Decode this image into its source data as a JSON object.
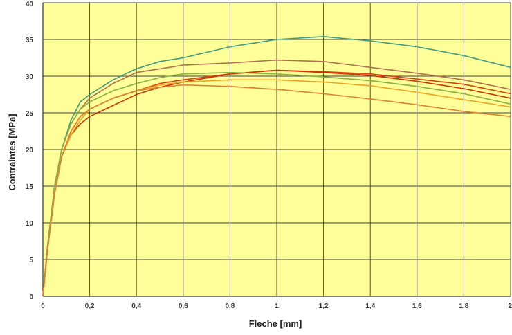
{
  "chart_data": {
    "type": "line",
    "title": "",
    "xlabel": "Fleche [mm]",
    "ylabel": "Contraintes  [MPa]",
    "xlim": [
      0,
      2
    ],
    "ylim": [
      0,
      40
    ],
    "grid": true,
    "plot_background": "#ffff99",
    "grid_color": "#404040",
    "x_ticks": [
      0,
      0.2,
      0.4,
      0.6,
      0.8,
      1,
      1.2,
      1.4,
      1.6,
      1.8,
      2
    ],
    "x_tick_labels": [
      "0",
      "0,2",
      "0,4",
      "0,6",
      "0,8",
      "1",
      "1,2",
      "1,4",
      "1,6",
      "1,8",
      "2"
    ],
    "y_ticks": [
      0,
      5,
      10,
      15,
      20,
      25,
      30,
      35,
      40
    ],
    "y_tick_labels": [
      "0",
      "5",
      "10",
      "15",
      "20",
      "25",
      "30",
      "35",
      "40"
    ],
    "series": [
      {
        "color": "#3e9a80",
        "x": [
          0,
          0.02,
          0.05,
          0.08,
          0.12,
          0.16,
          0.2,
          0.3,
          0.4,
          0.5,
          0.6,
          0.8,
          1.0,
          1.2,
          1.4,
          1.6,
          1.8,
          2.0
        ],
        "y": [
          0,
          7,
          15,
          20,
          24,
          26.5,
          27.5,
          29.5,
          31,
          32,
          32.5,
          34,
          35,
          35.4,
          34.8,
          34,
          32.8,
          31.2
        ]
      },
      {
        "color": "#b07050",
        "x": [
          0,
          0.02,
          0.05,
          0.08,
          0.12,
          0.16,
          0.2,
          0.3,
          0.4,
          0.5,
          0.6,
          0.8,
          1.0,
          1.2,
          1.4,
          1.6,
          1.8,
          2.0
        ],
        "y": [
          0,
          7,
          15,
          20,
          23.5,
          25.5,
          27,
          29,
          30.5,
          31,
          31.5,
          31.8,
          32.2,
          32,
          31.2,
          30.4,
          29.5,
          28.2
        ]
      },
      {
        "color": "#d84010",
        "x": [
          0,
          0.02,
          0.05,
          0.08,
          0.12,
          0.16,
          0.2,
          0.3,
          0.4,
          0.5,
          0.6,
          0.8,
          1.0,
          1.2,
          1.4,
          1.6,
          1.8,
          2.0
        ],
        "y": [
          0,
          6.5,
          14,
          19,
          22.5,
          24.5,
          25.5,
          27,
          28,
          29,
          29.5,
          30.3,
          30.8,
          30.6,
          30.3,
          29.6,
          28.9,
          27.6
        ]
      },
      {
        "color": "#cc3300",
        "x": [
          0,
          0.02,
          0.05,
          0.08,
          0.12,
          0.16,
          0.2,
          0.3,
          0.4,
          0.5,
          0.6,
          0.8,
          1.0,
          1.2,
          1.4,
          1.6,
          1.8,
          2.0
        ],
        "y": [
          0,
          6.5,
          14,
          19,
          22,
          23.5,
          24.5,
          26,
          27.5,
          28.5,
          29.2,
          30.3,
          30.8,
          30.5,
          30.1,
          29.3,
          28.3,
          27
        ]
      },
      {
        "color": "#88b040",
        "x": [
          0,
          0.02,
          0.05,
          0.08,
          0.12,
          0.16,
          0.2,
          0.3,
          0.4,
          0.5,
          0.6,
          0.8,
          1.0,
          1.2,
          1.4,
          1.6,
          1.8,
          2.0
        ],
        "y": [
          0,
          7,
          15,
          20,
          23.5,
          25.5,
          26.5,
          28,
          29,
          29.8,
          30.3,
          30.5,
          30.3,
          29.9,
          29.4,
          28.6,
          27.6,
          26.2
        ]
      },
      {
        "color": "#f0a020",
        "x": [
          0,
          0.02,
          0.05,
          0.08,
          0.12,
          0.16,
          0.2,
          0.3,
          0.4,
          0.5,
          0.6,
          0.8,
          1.0,
          1.2,
          1.4,
          1.6,
          1.8,
          2.0
        ],
        "y": [
          0,
          6.5,
          14,
          19,
          22,
          24,
          25.5,
          27,
          28,
          28.8,
          29.2,
          29.5,
          29.5,
          29.2,
          28.7,
          27.8,
          26.8,
          25.8
        ]
      },
      {
        "color": "#e08030",
        "x": [
          0,
          0.02,
          0.05,
          0.08,
          0.12,
          0.16,
          0.2,
          0.3,
          0.4,
          0.5,
          0.6,
          0.8,
          1.0,
          1.2,
          1.4,
          1.6,
          1.8,
          2.0
        ],
        "y": [
          0,
          6.5,
          14,
          19,
          22.5,
          24.5,
          25.5,
          27,
          28,
          28.5,
          28.8,
          28.6,
          28.2,
          27.6,
          26.9,
          26.1,
          25.2,
          24.5
        ]
      }
    ]
  }
}
